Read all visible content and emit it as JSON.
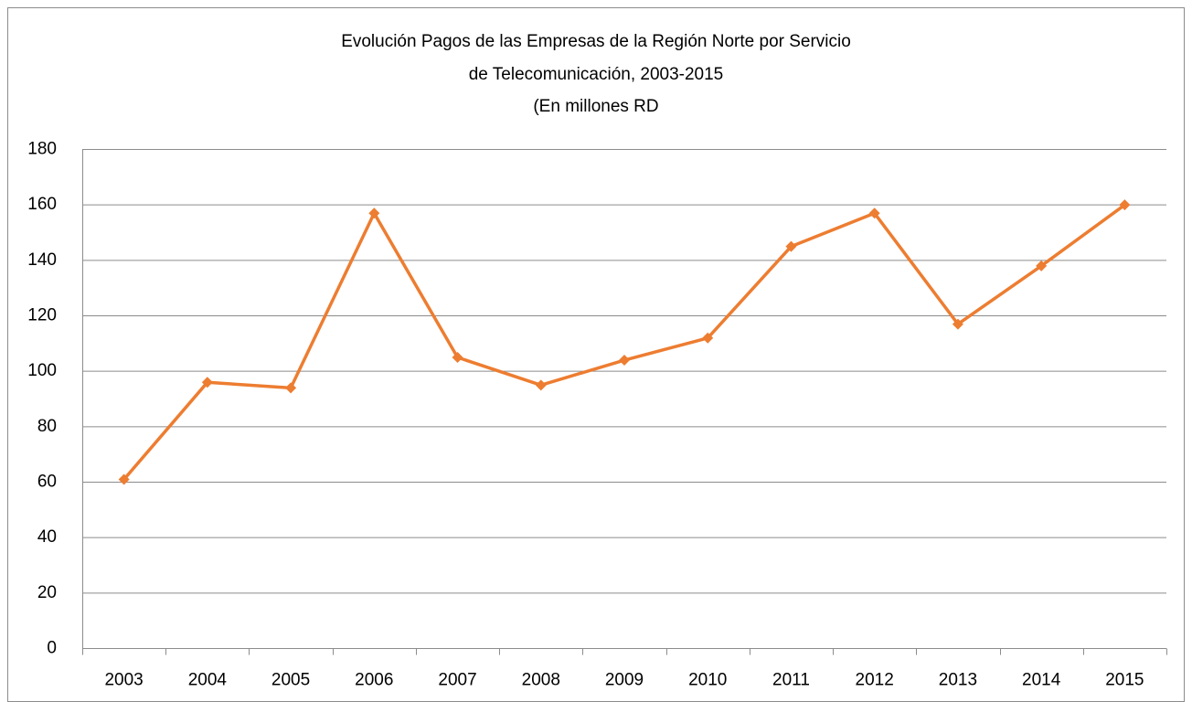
{
  "chart_data": {
    "type": "line",
    "title": [
      "Evolución Pagos de las Empresas de la Región Norte por Servicio",
      "de Telecomunicación, 2003-2015",
      "(En millones RD"
    ],
    "categories": [
      "2003",
      "2004",
      "2005",
      "2006",
      "2007",
      "2008",
      "2009",
      "2010",
      "2011",
      "2012",
      "2013",
      "2014",
      "2015"
    ],
    "values": [
      61,
      96,
      94,
      157,
      105,
      95,
      104,
      112,
      145,
      157,
      117,
      138,
      160
    ],
    "color": "#ed7d31",
    "ylim": [
      0,
      180
    ],
    "yticks": [
      0,
      20,
      40,
      60,
      80,
      100,
      120,
      140,
      160,
      180
    ],
    "grid": true
  }
}
